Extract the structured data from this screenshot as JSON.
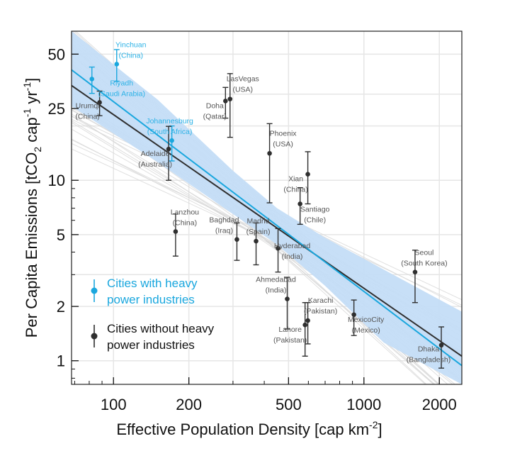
{
  "chart_data": {
    "type": "scatter",
    "title": "",
    "xlabel_parts": [
      {
        "t": "Effective Population Density [cap km"
      },
      {
        "t": "-2",
        "sup": true
      },
      {
        "t": "]"
      }
    ],
    "ylabel_parts": [
      {
        "t": "Per Capita Emissions [tCO"
      },
      {
        "t": "2",
        "sub": true
      },
      {
        "t": " cap"
      },
      {
        "t": "-1",
        "sup": true
      },
      {
        "t": " yr"
      },
      {
        "t": "-1",
        "sup": true
      },
      {
        "t": "]"
      }
    ],
    "x_scale": "log",
    "y_scale": "log",
    "xlim": [
      68,
      2460
    ],
    "ylim": [
      0.74,
      67
    ],
    "x_ticks": [
      {
        "v": 100,
        "label": "100"
      },
      {
        "v": 200,
        "label": "200"
      },
      {
        "v": 500,
        "label": "500"
      },
      {
        "v": 1000,
        "label": "1000"
      },
      {
        "v": 2000,
        "label": "2000"
      }
    ],
    "y_ticks": [
      {
        "v": 1,
        "label": "1"
      },
      {
        "v": 2,
        "label": "2"
      },
      {
        "v": 5,
        "label": "5"
      },
      {
        "v": 10,
        "label": "10"
      },
      {
        "v": 25,
        "label": "25"
      },
      {
        "v": 50,
        "label": "50"
      }
    ],
    "grid": true,
    "legend_placement": "bottom-left",
    "colors": {
      "heavy": "#1aa7de",
      "non_heavy": "#2f2f2f",
      "band": "#c4ddf7",
      "bootstrap": "#d8d8d8"
    },
    "series": [
      {
        "name": "Cities with heavy power industries",
        "color": "#1aa7de",
        "points": [
          {
            "city": "Yinchuan",
            "country": "(China)",
            "x": 103,
            "y": 44,
            "y_low": 35.4,
            "y_high": 53
          },
          {
            "city": "Riyadh",
            "country": "(Saudi Arabia)",
            "x": 82,
            "y": 36.4,
            "y_low": 30.3,
            "y_high": 42.4
          },
          {
            "city": "Johannesburg",
            "country": "(South Africa)",
            "x": 171,
            "y": 16.6,
            "y_low": 12.8,
            "y_high": 20
          }
        ],
        "fit": {
          "x": [
            68,
            2460
          ],
          "y": [
            40.9,
            0.94
          ]
        }
      },
      {
        "name": "Cities without heavy power industries",
        "color": "#2f2f2f",
        "points": [
          {
            "city": "Urumqi",
            "country": "(China)",
            "x": 88,
            "y": 27,
            "y_low": 22.8,
            "y_high": 31.2
          },
          {
            "city": "Adelaide",
            "country": "(Australia)",
            "x": 166,
            "y": 14.9,
            "y_low": 10,
            "y_high": 19.9
          },
          {
            "city": "Doha",
            "country": "(Qatar)",
            "x": 280,
            "y": 27.5,
            "y_low": 22.1,
            "y_high": 32.7
          },
          {
            "city": "LasVegas",
            "country": "(USA)",
            "x": 292,
            "y": 28.2,
            "y_low": 17.3,
            "y_high": 39
          },
          {
            "city": "Phoenix",
            "country": "(USA)",
            "x": 420,
            "y": 14.1,
            "y_low": 7.5,
            "y_high": 20.6
          },
          {
            "city": "Xian",
            "country": "(China)",
            "x": 597,
            "y": 10.8,
            "y_low": 7.4,
            "y_high": 14.4
          },
          {
            "city": "Santiago",
            "country": "(Chile)",
            "x": 556,
            "y": 7.4,
            "y_low": 5.7,
            "y_high": 9.1
          },
          {
            "city": "Lanzhou",
            "country": "(China)",
            "x": 177,
            "y": 5.2,
            "y_low": 3.8,
            "y_high": 6.5
          },
          {
            "city": "Baghdad",
            "country": "(Iraq)",
            "x": 311,
            "y": 4.7,
            "y_low": 3.6,
            "y_high": 5.8
          },
          {
            "city": "Madrid",
            "country": "(Spain)",
            "x": 371,
            "y": 4.6,
            "y_low": 3.4,
            "y_high": 5.8
          },
          {
            "city": "Hyderabad",
            "country": "(India)",
            "x": 454,
            "y": 4.2,
            "y_low": 3.1,
            "y_high": 5.4
          },
          {
            "city": "Ahmedabad",
            "country": "(India)",
            "x": 494,
            "y": 2.2,
            "y_low": 1.5,
            "y_high": 2.9
          },
          {
            "city": "Lahore",
            "country": "(Pakistan)",
            "x": 582,
            "y": 1.58,
            "y_low": 1.06,
            "y_high": 2.1
          },
          {
            "city": "Karachi",
            "country": "(Pakistan)",
            "x": 597,
            "y": 1.67,
            "y_low": 1.24,
            "y_high": 2.1
          },
          {
            "city": "MexicoCity",
            "country": "(Mexico)",
            "x": 912,
            "y": 1.8,
            "y_low": 1.38,
            "y_high": 2.17
          },
          {
            "city": "Seoul",
            "country": "(South Korea)",
            "x": 1600,
            "y": 3.1,
            "y_low": 2.1,
            "y_high": 4.1
          },
          {
            "city": "Dhaka",
            "country": "(Bangladesh)",
            "x": 2037,
            "y": 1.22,
            "y_low": 0.91,
            "y_high": 1.54
          }
        ],
        "fit": {
          "x": [
            68,
            2460
          ],
          "y": [
            33.5,
            1.06
          ]
        }
      }
    ],
    "confidence_band": {
      "x": [
        68,
        150,
        300,
        450,
        700,
        1200,
        2460
      ],
      "upper": [
        67,
        28,
        11.3,
        7.0,
        4.8,
        3.2,
        1.87
      ],
      "lower": [
        25.7,
        12.6,
        6.5,
        4.4,
        2.6,
        1.26,
        0.74
      ]
    },
    "legend": [
      {
        "line1": "Cities with heavy",
        "line2": "power industries",
        "color": "#1aa7de"
      },
      {
        "line1": "Cities without heavy",
        "line2": "power industries",
        "color": "#2f2f2f"
      }
    ]
  }
}
